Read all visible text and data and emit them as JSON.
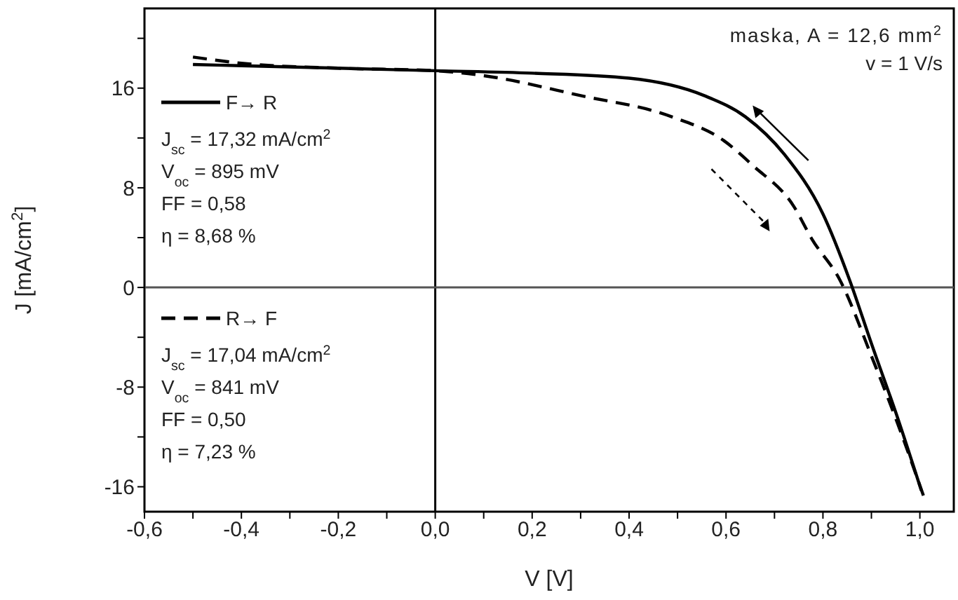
{
  "chart_data": {
    "type": "line",
    "xlabel": "V [V]",
    "ylabel": "J [mA/cm$^{2}$]",
    "xlim": [
      -0.6,
      1.07
    ],
    "xticks": [
      {
        "value": -0.6,
        "label": "-0,6"
      },
      {
        "value": -0.5,
        "label": null
      },
      {
        "value": -0.4,
        "label": "-0,4"
      },
      {
        "value": -0.3,
        "label": null
      },
      {
        "value": -0.2,
        "label": "-0,2"
      },
      {
        "value": -0.1,
        "label": null
      },
      {
        "value": 0,
        "label": "0,0"
      },
      {
        "value": 0.1,
        "label": null
      },
      {
        "value": 0.2,
        "label": "0,2"
      },
      {
        "value": 0.3,
        "label": null
      },
      {
        "value": 0.4,
        "label": "0,4"
      },
      {
        "value": 0.5,
        "label": null
      },
      {
        "value": 0.6,
        "label": "0,6"
      },
      {
        "value": 0.7,
        "label": null
      },
      {
        "value": 0.8,
        "label": "0,8"
      },
      {
        "value": 0.9,
        "label": null
      },
      {
        "value": 1,
        "label": "1,0"
      }
    ],
    "ylim": [
      -18,
      22.4
    ],
    "yticks": [
      -16,
      {
        "value": -12,
        "label": null
      },
      -8,
      {
        "value": -4,
        "label": null
      },
      0,
      {
        "value": 4,
        "label": null
      },
      8,
      {
        "value": 12,
        "label": null
      },
      16,
      {
        "value": 20,
        "label": null
      }
    ],
    "series": [
      {
        "name": "F→ R",
        "color": "#000000",
        "line_style": "solid",
        "x": [
          -0.5,
          -0.4,
          -0.2,
          0,
          0.2,
          0.4,
          0.555,
          0.64,
          0.72,
          0.8,
          0.855,
          0.9,
          0.95,
          1.003
        ],
        "values": [
          17.9,
          17.8,
          17.6,
          17.4,
          17.2,
          16.8,
          15.4,
          13.7,
          10.7,
          5.9,
          0.6,
          -4.5,
          -10,
          -16.3
        ]
      },
      {
        "name": "R→ F",
        "color": "#000000",
        "line_style": "dashed",
        "x": [
          -0.5,
          -0.4,
          -0.2,
          0,
          0.1,
          0.3,
          0.488,
          0.595,
          0.655,
          0.74,
          0.777,
          0.835,
          0.9,
          0.95,
          1.01
        ],
        "values": [
          18.5,
          18,
          17.6,
          17.4,
          17,
          15.4,
          13.7,
          11.8,
          9.8,
          6.5,
          3.9,
          0.6,
          -5.5,
          -10.5,
          -17
        ]
      }
    ],
    "ref_lines": [
      {
        "axis": "x",
        "value": 0,
        "color": "#000000"
      },
      {
        "axis": "y",
        "value": 0,
        "color": "#555555"
      }
    ],
    "annotations": [
      "maska,  A  = 12,6 mm$^{2}$",
      "v = 1 V/s",
      "J$_{sc}$ = 17,32 mA/cm$^{2}$",
      "V$_{oc}$ = 895 mV",
      "FF = 0,58",
      "η  = 8,68 %",
      "J$_{sc}$ = 17,04 mA/cm$^{2}$",
      "V$_{oc}$ = 841 mV",
      "FF = 0,50",
      "η  = 7,23 %"
    ],
    "legend": "left",
    "grid": false,
    "marker": "none"
  }
}
